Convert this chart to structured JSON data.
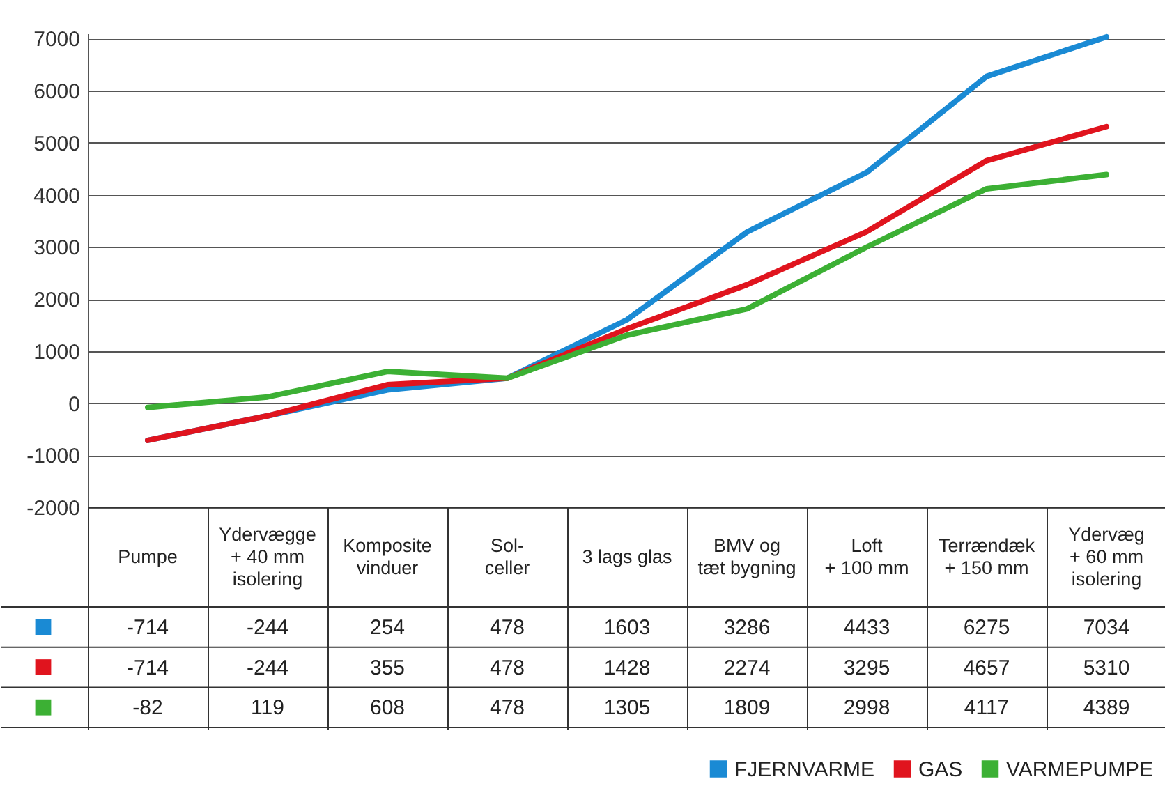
{
  "chart_data": {
    "type": "line",
    "categories": [
      "Pumpe",
      "Ydervægge\n+ 40 mm\nisolering",
      "Komposite\nvinduer",
      "Sol-\nceller",
      "3 lags glas",
      "BMV og\ntæt bygning",
      "Loft\n+ 100 mm",
      "Terrændæk\n+ 150 mm",
      "Ydervæg\n+ 60 mm\nisolering"
    ],
    "series": [
      {
        "name": "FJERNVARME",
        "color": "#1a8ad4",
        "values": [
          -714,
          -244,
          254,
          478,
          1603,
          3286,
          4433,
          6275,
          7034
        ]
      },
      {
        "name": "GAS",
        "color": "#e0141e",
        "values": [
          -714,
          -244,
          355,
          478,
          1428,
          2274,
          3295,
          4657,
          5310
        ]
      },
      {
        "name": "VARMEPUMPE",
        "color": "#3cb034",
        "values": [
          -82,
          119,
          608,
          478,
          1305,
          1809,
          2998,
          4117,
          4389
        ]
      }
    ],
    "ylim": [
      -2000,
      7100
    ],
    "yticks": [
      -2000,
      -1000,
      0,
      1000,
      2000,
      3000,
      4000,
      5000,
      6000,
      7000
    ],
    "grid": "y",
    "legend": "bottom",
    "data_labels": true,
    "line_style": "solid",
    "marker": "none"
  }
}
